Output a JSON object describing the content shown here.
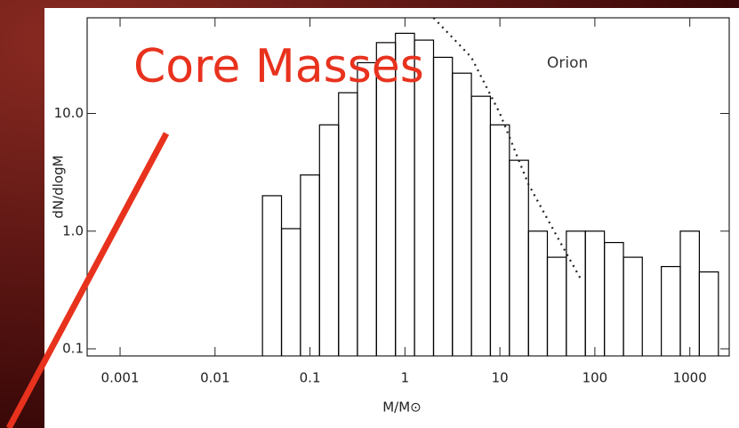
{
  "chart_data": {
    "type": "histogram",
    "title": "Core Masses",
    "annotation": "Orion",
    "xlabel": "M/M⊙",
    "ylabel": "dN/dlogM",
    "xscale": "log",
    "yscale": "log",
    "xlim": [
      0.00045,
      2600
    ],
    "ylim": [
      0.087,
      65
    ],
    "xticks": [
      0.001,
      0.01,
      0.1,
      1,
      10,
      100,
      1000
    ],
    "yticks": [
      0.1,
      {
        "value": 1,
        "label": "1.0"
      },
      {
        "value": 10,
        "label": "10.0"
      }
    ],
    "bins": [
      0.0316,
      0.0501,
      0.0794,
      0.126,
      0.2,
      0.316,
      0.501,
      0.794,
      1.26,
      2,
      3.16,
      5.01,
      7.94,
      12.6,
      20,
      31.6,
      50.1,
      79.4,
      126,
      200,
      316,
      501,
      794,
      1260,
      2000
    ],
    "values": [
      2.0,
      1.05,
      3.0,
      8,
      15,
      27,
      40,
      48,
      42,
      30,
      22,
      14,
      8,
      4,
      1.0,
      0.6,
      1.0,
      1.0,
      0.8,
      0.6,
      null,
      0.5,
      1.0,
      0.45
    ],
    "color": "#000000",
    "fit": {
      "x": [
        2,
        5,
        10,
        20,
        40,
        70
      ],
      "values": [
        65,
        30,
        10,
        2.5,
        0.9,
        0.4
      ]
    },
    "title_color": "#e8321e"
  }
}
